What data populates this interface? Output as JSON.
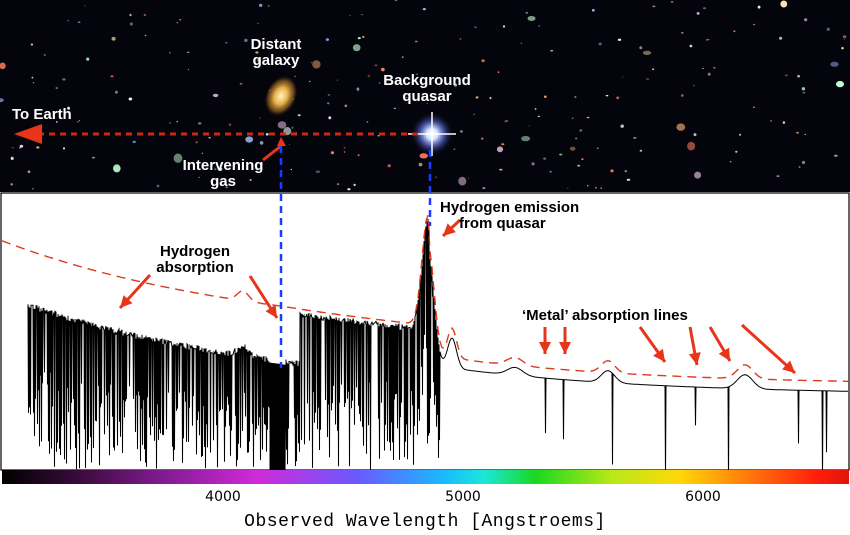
{
  "sky_labels": {
    "galaxy": [
      "Distant",
      "galaxy"
    ],
    "quasar": [
      "Background",
      "quasar"
    ],
    "earth": "To Earth",
    "gas": [
      "Intervening",
      "gas"
    ]
  },
  "plot_labels": {
    "emission": [
      "Hydrogen emission",
      "from quasar"
    ],
    "absorption": [
      "Hydrogen",
      "absorption"
    ],
    "metal": "‘Metal’ absorption lines"
  },
  "axis": {
    "ticks": [
      "4000",
      "5000",
      "6000"
    ],
    "xlabel": "Observed Wavelength [Angstroems]"
  },
  "colors": {
    "arrow": "#e8351a",
    "sightline": "#cc2a10",
    "guide": "#1a3cff",
    "spectrum": "#000000",
    "continuum": "#dd3a20"
  }
}
